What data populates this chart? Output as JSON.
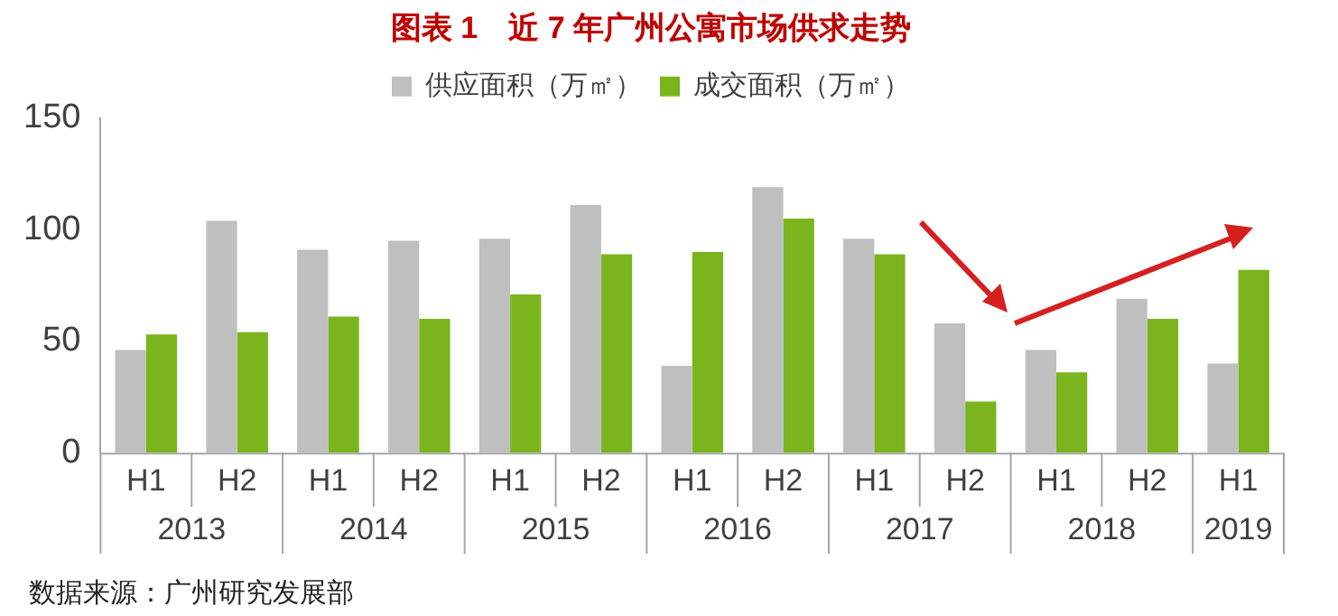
{
  "chart_data": {
    "type": "bar",
    "title": "图表 1　近 7 年广州公寓市场供求走势",
    "categories": [
      "H1",
      "H2",
      "H1",
      "H2",
      "H1",
      "H2",
      "H1",
      "H2",
      "H1",
      "H2",
      "H1",
      "H2",
      "H1"
    ],
    "series": [
      {
        "name": "供应面积（万㎡）",
        "color": "#bfbfbf",
        "values": [
          46,
          104,
          91,
          95,
          96,
          111,
          39,
          119,
          96,
          58,
          46,
          69,
          40
        ]
      },
      {
        "name": "成交面积（万㎡）",
        "color": "#7ab51d",
        "values": [
          53,
          54,
          61,
          60,
          71,
          89,
          90,
          105,
          89,
          23,
          36,
          60,
          82
        ]
      }
    ],
    "ylim": [
      0,
      150
    ],
    "yticks": [
      0,
      50,
      100,
      150
    ],
    "grid": false,
    "legend": "top",
    "annotations": [
      "2013",
      "2014",
      "2015",
      "2016",
      "2017",
      "2018",
      "2019",
      "数据来源：广州研究发展部"
    ]
  }
}
